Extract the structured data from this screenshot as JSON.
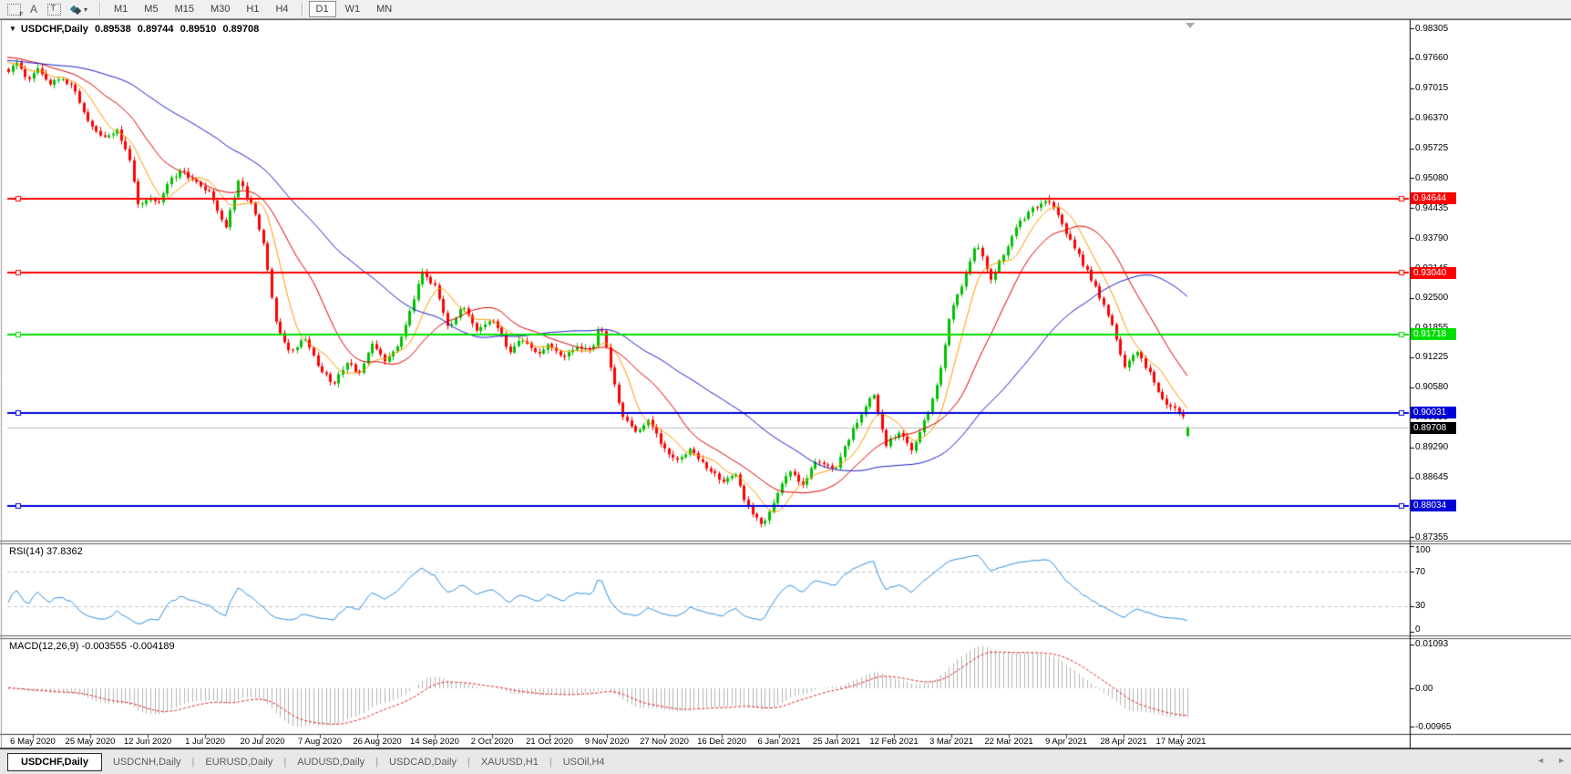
{
  "window": {
    "collapse_glyph": "▼",
    "symbol": "USDCHF,Daily",
    "open": "0.89538",
    "high": "0.89744",
    "low": "0.89510",
    "close": "0.89708"
  },
  "toolbar": {
    "tools": [
      {
        "name": "template-grid-tool",
        "glyph": "F"
      },
      {
        "name": "font-tool",
        "glyph": "A"
      },
      {
        "name": "text-label-tool",
        "glyph": "T"
      },
      {
        "name": "color-scheme-tool",
        "glyph": "▾"
      }
    ],
    "timeframes": [
      {
        "label": "M1",
        "active": false
      },
      {
        "label": "M5",
        "active": false
      },
      {
        "label": "M15",
        "active": false
      },
      {
        "label": "M30",
        "active": false
      },
      {
        "label": "H1",
        "active": false
      },
      {
        "label": "H4",
        "active": false
      },
      {
        "label": "D1",
        "active": true
      },
      {
        "label": "W1",
        "active": false
      },
      {
        "label": "MN",
        "active": false
      }
    ]
  },
  "price_axis": {
    "labels": [
      "0.98305",
      "0.97660",
      "0.97015",
      "0.96370",
      "0.95725",
      "0.95080",
      "0.94435",
      "0.93790",
      "0.93145",
      "0.92500",
      "0.91855",
      "0.91225",
      "0.90580",
      "0.89935",
      "0.89290",
      "0.88645",
      "0.88000",
      "0.87355"
    ]
  },
  "hlines": [
    {
      "label": "0.94644",
      "price": 0.94644,
      "color": "#FF0000",
      "text_color": "#FFFFFF"
    },
    {
      "label": "0.93040",
      "price": 0.9304,
      "color": "#FF0000",
      "text_color": "#FFFFFF"
    },
    {
      "label": "0.91718",
      "price": 0.91718,
      "color": "#00DE00",
      "text_color": "#FFFFFF"
    },
    {
      "label": "0.90031",
      "price": 0.90031,
      "color": "#0000D8",
      "text_color": "#FFFFFF"
    },
    {
      "label": "0.88034",
      "price": 0.88034,
      "color": "#0000D8",
      "text_color": "#FFFFFF"
    }
  ],
  "bid": {
    "label": "0.89708",
    "price": 0.89708,
    "color": "#000000",
    "text_color": "#FFFFFF"
  },
  "date_axis": {
    "labels": [
      "6 May 2020",
      "25 May 2020",
      "12 Jun 2020",
      "1 Jul 2020",
      "20 Jul 2020",
      "7 Aug 2020",
      "26 Aug 2020",
      "14 Sep 2020",
      "2 Oct 2020",
      "21 Oct 2020",
      "9 Nov 2020",
      "27 Nov 2020",
      "16 Dec 2020",
      "6 Jan 2021",
      "25 Jan 2021",
      "12 Feb 2021",
      "3 Mar 2021",
      "22 Mar 2021",
      "9 Apr 2021",
      "28 Apr 2021",
      "17 May 2021"
    ]
  },
  "rsi": {
    "title": "RSI(14) 37.8362",
    "period": 14,
    "value": "37.8362",
    "axis": [
      {
        "label": "100",
        "value": 100
      },
      {
        "label": "70",
        "value": 70
      },
      {
        "label": "30",
        "value": 30
      },
      {
        "label": "0",
        "value": 0
      }
    ],
    "level_lines": [
      70,
      30
    ]
  },
  "macd": {
    "title": "MACD(12,26,9) -0.003555 -0.004189",
    "fast": 12,
    "slow": 26,
    "signal_period": 9,
    "macd_value": "-0.003555",
    "signal_value": "-0.004189",
    "axis": [
      {
        "label": "0.01093",
        "value": 0.01093
      },
      {
        "label": "0.00",
        "value": 0
      },
      {
        "label": "-0.00965",
        "value": -0.00965
      }
    ]
  },
  "tabs": {
    "separator": "|",
    "scroll_left": "◄",
    "scroll_right": "►",
    "items": [
      {
        "label": "USDCHF,Daily",
        "active": true
      },
      {
        "label": "USDCNH,Daily",
        "active": false
      },
      {
        "label": "EURUSD,Daily",
        "active": false
      },
      {
        "label": "AUDUSD,Daily",
        "active": false
      },
      {
        "label": "USDCAD,Daily",
        "active": false
      },
      {
        "label": "XAUUSD,H1",
        "active": false
      },
      {
        "label": "USOil,H4",
        "active": false
      }
    ]
  },
  "chart_data": {
    "type": "candlestick",
    "symbol": "USDCHF",
    "timeframe": "Daily",
    "current_bar": {
      "open": 0.89538,
      "high": 0.89744,
      "low": 0.8951,
      "close": 0.89708
    },
    "y_axis": {
      "min": 0.87355,
      "max": 0.98305,
      "tick_step": 0.00645
    },
    "x_axis_dates": [
      "6 May 2020",
      "25 May 2020",
      "12 Jun 2020",
      "1 Jul 2020",
      "20 Jul 2020",
      "7 Aug 2020",
      "26 Aug 2020",
      "14 Sep 2020",
      "2 Oct 2020",
      "21 Oct 2020",
      "9 Nov 2020",
      "27 Nov 2020",
      "16 Dec 2020",
      "6 Jan 2021",
      "25 Jan 2021",
      "12 Feb 2021",
      "3 Mar 2021",
      "22 Mar 2021",
      "9 Apr 2021",
      "28 Apr 2021",
      "17 May 2021"
    ],
    "horizontal_lines": [
      {
        "price": 0.94644,
        "color": "#FF0000"
      },
      {
        "price": 0.9304,
        "color": "#FF0000"
      },
      {
        "price": 0.91718,
        "color": "#00DE00"
      },
      {
        "price": 0.90031,
        "color": "#0000D8"
      },
      {
        "price": 0.88034,
        "color": "#0000D8"
      }
    ],
    "bid_line": 0.89708,
    "moving_averages": [
      {
        "type": "SMA",
        "period": 8,
        "color": "#FF9900"
      },
      {
        "type": "SMA",
        "period": 20,
        "color": "#DD0000"
      },
      {
        "type": "SMA",
        "period": 50,
        "color": "#1A1ACC"
      }
    ],
    "indicators": [
      {
        "name": "RSI",
        "period": 14,
        "value": 37.8362,
        "levels": [
          70,
          30
        ],
        "range": [
          0,
          100
        ]
      },
      {
        "name": "MACD",
        "fast": 12,
        "slow": 26,
        "signal": 9,
        "macd": -0.003555,
        "signal_value": -0.004189,
        "axis_max": 0.01093,
        "axis_min": -0.00965
      }
    ],
    "colors": {
      "bull": "#00C000",
      "bear": "#FF0000",
      "rsi_line": "#2F8FE0",
      "macd_hist": "#B4B4B4",
      "macd_signal": "#DD2222",
      "background": "#FFFFFF"
    },
    "price_path_anchors": [
      [
        9,
        0.9738
      ],
      [
        18,
        0.9755
      ],
      [
        30,
        0.9722
      ],
      [
        42,
        0.9742
      ],
      [
        55,
        0.971
      ],
      [
        68,
        0.9726
      ],
      [
        82,
        0.9695
      ],
      [
        99,
        0.962
      ],
      [
        112,
        0.9592
      ],
      [
        128,
        0.9612
      ],
      [
        142,
        0.9545
      ],
      [
        152,
        0.945
      ],
      [
        163,
        0.947
      ],
      [
        172,
        0.9452
      ],
      [
        186,
        0.951
      ],
      [
        202,
        0.9522
      ],
      [
        216,
        0.9495
      ],
      [
        230,
        0.948
      ],
      [
        247,
        0.94
      ],
      [
        262,
        0.9502
      ],
      [
        276,
        0.945
      ],
      [
        289,
        0.9365
      ],
      [
        303,
        0.919
      ],
      [
        319,
        0.9132
      ],
      [
        334,
        0.9168
      ],
      [
        350,
        0.91
      ],
      [
        366,
        0.9062
      ],
      [
        380,
        0.9115
      ],
      [
        394,
        0.9088
      ],
      [
        409,
        0.915
      ],
      [
        424,
        0.9112
      ],
      [
        439,
        0.916
      ],
      [
        454,
        0.9252
      ],
      [
        463,
        0.9312
      ],
      [
        478,
        0.927
      ],
      [
        492,
        0.9188
      ],
      [
        507,
        0.923
      ],
      [
        523,
        0.9178
      ],
      [
        540,
        0.9206
      ],
      [
        558,
        0.9135
      ],
      [
        573,
        0.9162
      ],
      [
        589,
        0.913
      ],
      [
        603,
        0.9152
      ],
      [
        618,
        0.9118
      ],
      [
        634,
        0.9148
      ],
      [
        650,
        0.914
      ],
      [
        658,
        0.9198
      ],
      [
        669,
        0.9108
      ],
      [
        682,
        0.9002
      ],
      [
        697,
        0.8962
      ],
      [
        712,
        0.8986
      ],
      [
        729,
        0.8922
      ],
      [
        744,
        0.8898
      ],
      [
        758,
        0.8932
      ],
      [
        773,
        0.8888
      ],
      [
        792,
        0.8856
      ],
      [
        806,
        0.8872
      ],
      [
        820,
        0.8802
      ],
      [
        836,
        0.8762
      ],
      [
        851,
        0.8822
      ],
      [
        866,
        0.8878
      ],
      [
        881,
        0.8852
      ],
      [
        896,
        0.8902
      ],
      [
        918,
        0.8884
      ],
      [
        934,
        0.8962
      ],
      [
        951,
        0.9024
      ],
      [
        959,
        0.904
      ],
      [
        972,
        0.8936
      ],
      [
        986,
        0.896
      ],
      [
        1000,
        0.8924
      ],
      [
        1014,
        0.8986
      ],
      [
        1029,
        0.907
      ],
      [
        1044,
        0.9228
      ],
      [
        1058,
        0.929
      ],
      [
        1072,
        0.937
      ],
      [
        1086,
        0.929
      ],
      [
        1100,
        0.934
      ],
      [
        1114,
        0.9398
      ],
      [
        1128,
        0.9434
      ],
      [
        1142,
        0.945
      ],
      [
        1153,
        0.9464
      ],
      [
        1164,
        0.9415
      ],
      [
        1172,
        0.9382
      ],
      [
        1186,
        0.9332
      ],
      [
        1201,
        0.9278
      ],
      [
        1218,
        0.9205
      ],
      [
        1234,
        0.91
      ],
      [
        1248,
        0.9136
      ],
      [
        1263,
        0.9082
      ],
      [
        1278,
        0.9024
      ],
      [
        1291,
        0.9006
      ],
      [
        1301,
        0.899
      ],
      [
        1306,
        0.8971
      ]
    ]
  }
}
